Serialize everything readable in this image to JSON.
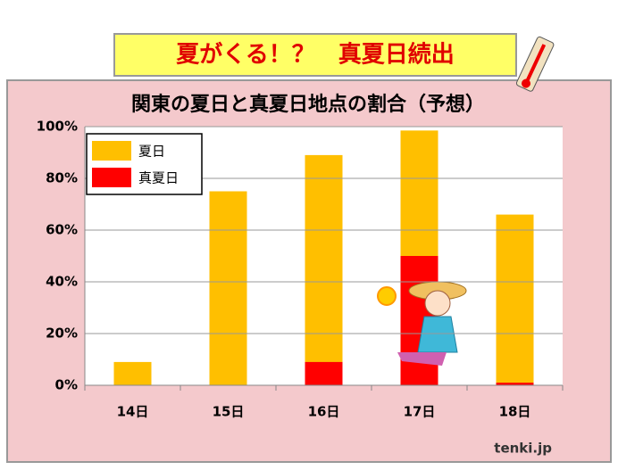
{
  "chart_data": {
    "type": "bar",
    "banner": "夏がくる！？　真夏日続出",
    "title": "関東の夏日と真夏日地点の割合（予想）",
    "categories": [
      "14日",
      "15日",
      "16日",
      "17日",
      "18日"
    ],
    "series": [
      {
        "name": "夏日",
        "color": "#ffbf00",
        "values": [
          9,
          75,
          89,
          98.5,
          66
        ]
      },
      {
        "name": "真夏日",
        "color": "#ff0000",
        "values": [
          0,
          0,
          9,
          50,
          1
        ]
      }
    ],
    "ylim": [
      0,
      100
    ],
    "yticks": [
      {
        "value": 0,
        "label": "0%"
      },
      {
        "value": 20,
        "label": "20%"
      },
      {
        "value": 40,
        "label": "40%"
      },
      {
        "value": 60,
        "label": "60%"
      },
      {
        "value": 80,
        "label": "80%"
      },
      {
        "value": 100,
        "label": "100%"
      }
    ],
    "grid": true,
    "legend": "upper left",
    "credit": "tenki.jp"
  }
}
